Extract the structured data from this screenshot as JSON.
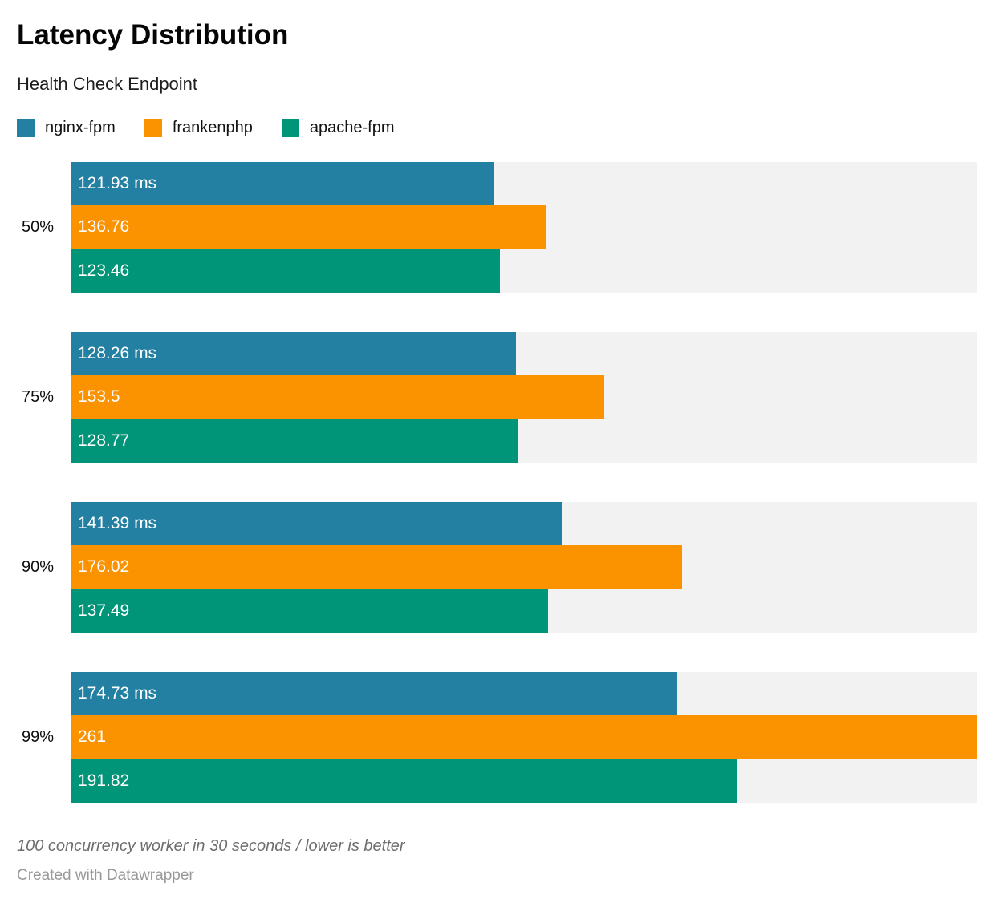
{
  "title": "Latency Distribution",
  "subtitle": "Health Check Endpoint",
  "legend": [
    {
      "label": "nginx-fpm",
      "color": "#2380a3"
    },
    {
      "label": "frankenphp",
      "color": "#fb9200"
    },
    {
      "label": "apache-fpm",
      "color": "#009478"
    }
  ],
  "chart_data": {
    "type": "bar",
    "orientation": "horizontal",
    "title": "Latency Distribution",
    "subtitle": "Health Check Endpoint",
    "categories": [
      "50%",
      "75%",
      "90%",
      "99%"
    ],
    "series": [
      {
        "name": "nginx-fpm",
        "color": "#2380a3",
        "values": [
          121.93,
          128.26,
          141.39,
          174.73
        ],
        "labels": [
          "121.93 ms",
          "128.26 ms",
          "141.39 ms",
          "174.73 ms"
        ]
      },
      {
        "name": "frankenphp",
        "color": "#fb9200",
        "values": [
          136.76,
          153.5,
          176.02,
          261
        ],
        "labels": [
          "136.76",
          "153.5",
          "176.02",
          "261"
        ]
      },
      {
        "name": "apache-fpm",
        "color": "#009478",
        "values": [
          123.46,
          128.77,
          137.49,
          191.82
        ],
        "labels": [
          "123.46",
          "128.77",
          "137.49",
          "191.82"
        ]
      }
    ],
    "unit": "ms",
    "xlim": [
      0,
      261
    ],
    "xmax": 261,
    "grid": false,
    "axis_visible": false,
    "legend_position": "top",
    "track_color": "#f2f2f2",
    "value_label_color": "#ffffff"
  },
  "footer": {
    "note": "100 concurrency worker in 30 seconds / lower is better",
    "credit": "Created with Datawrapper"
  }
}
